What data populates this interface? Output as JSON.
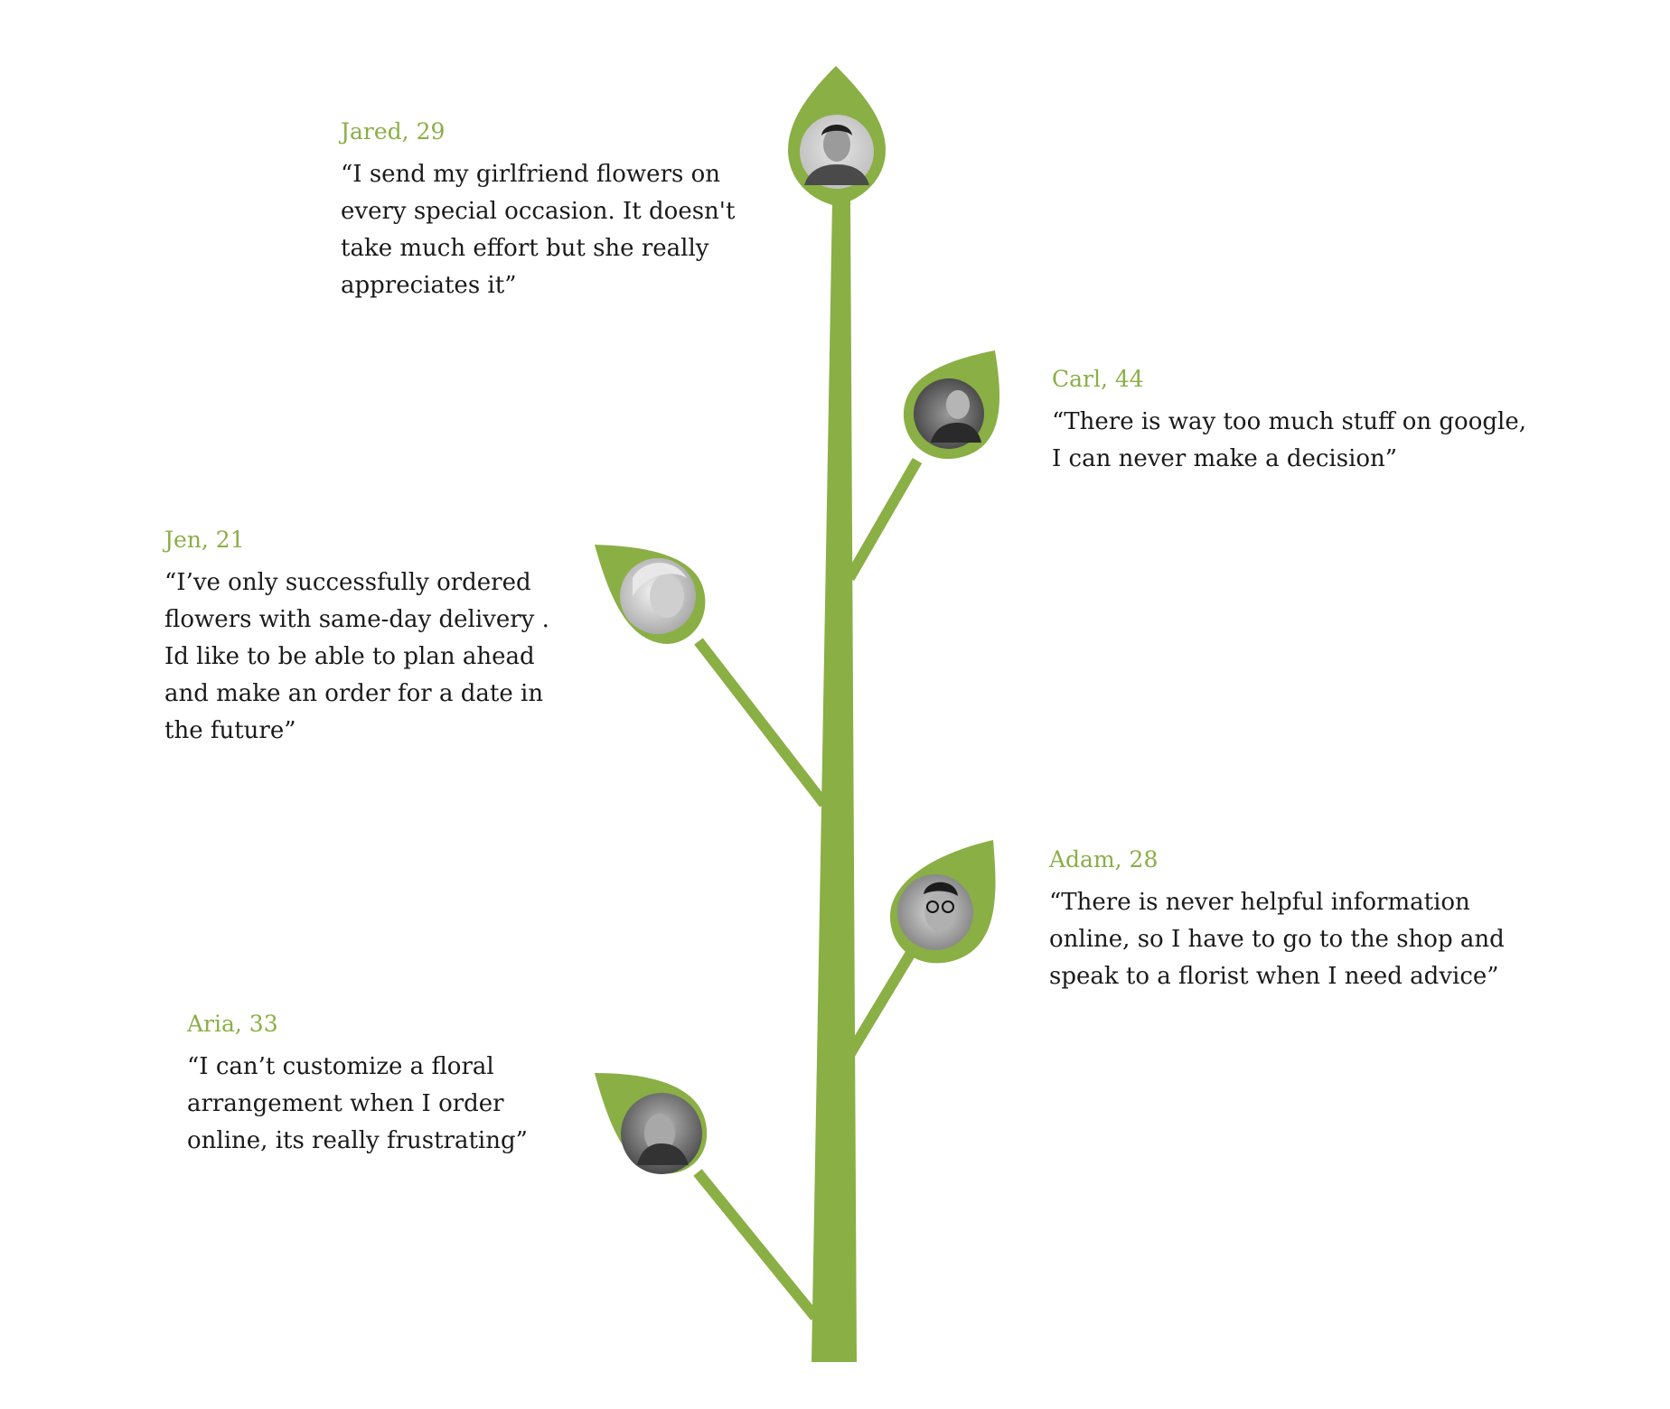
{
  "theme": {
    "accent_color": "#8aaf45",
    "text_color": "#1a1a1a",
    "background_color": "#ffffff"
  },
  "personas": [
    {
      "id": "jared",
      "name": "Jared, 29",
      "quote": "“I send my girlfriend flowers on every special occasion. It doesn't take much effort but she really appreciates it”",
      "avatar_icon": "portrait-photo-icon"
    },
    {
      "id": "carl",
      "name": "Carl, 44",
      "quote": "“There is way too much stuff on google, I can never make a decision”",
      "avatar_icon": "portrait-photo-icon"
    },
    {
      "id": "jen",
      "name": "Jen, 21",
      "quote": "“I’ve only successfully ordered flowers with same-day delivery .  Id like to be able to plan ahead and make an order for a date in the future”",
      "avatar_icon": "portrait-photo-icon"
    },
    {
      "id": "adam",
      "name": "Adam, 28",
      "quote": "“There is never helpful information online, so I have to go to the shop and speak to a florist when I need advice”",
      "avatar_icon": "portrait-photo-icon"
    },
    {
      "id": "aria",
      "name": "Aria, 33",
      "quote": "“I can’t customize a floral arrangement when I order online, its really frustrating”",
      "avatar_icon": "portrait-photo-icon"
    }
  ]
}
